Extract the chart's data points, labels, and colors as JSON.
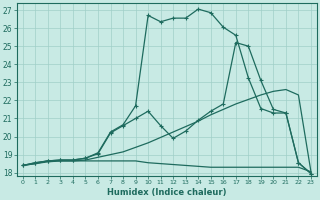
{
  "title": "",
  "xlabel": "Humidex (Indice chaleur)",
  "xlim": [
    -0.5,
    23.5
  ],
  "ylim": [
    17.8,
    27.4
  ],
  "xticks": [
    0,
    1,
    2,
    3,
    4,
    5,
    6,
    7,
    8,
    9,
    10,
    11,
    12,
    13,
    14,
    15,
    16,
    17,
    18,
    19,
    20,
    21,
    22,
    23
  ],
  "yticks": [
    18,
    19,
    20,
    21,
    22,
    23,
    24,
    25,
    26,
    27
  ],
  "bg_color": "#c8eae4",
  "grid_color": "#a0cfc8",
  "line_color": "#1e6b5e",
  "curves": [
    {
      "x": [
        0,
        1,
        2,
        3,
        4,
        5,
        6,
        7,
        8,
        9,
        10,
        11,
        12,
        13,
        14,
        15,
        16,
        17,
        18,
        19,
        20,
        21,
        22,
        23
      ],
      "y": [
        18.4,
        18.5,
        18.6,
        18.65,
        18.65,
        18.65,
        18.65,
        18.65,
        18.65,
        18.65,
        18.55,
        18.5,
        18.45,
        18.4,
        18.35,
        18.3,
        18.3,
        18.3,
        18.3,
        18.3,
        18.3,
        18.3,
        18.3,
        18.05
      ],
      "marker": null,
      "lw": 0.9
    },
    {
      "x": [
        0,
        1,
        2,
        3,
        4,
        5,
        6,
        7,
        8,
        9,
        10,
        11,
        12,
        13,
        14,
        15,
        16,
        17,
        18,
        19,
        20,
        21,
        22,
        23
      ],
      "y": [
        18.4,
        18.5,
        18.65,
        18.65,
        18.65,
        18.7,
        18.85,
        19.0,
        19.15,
        19.4,
        19.65,
        19.95,
        20.25,
        20.55,
        20.85,
        21.2,
        21.5,
        21.8,
        22.05,
        22.3,
        22.5,
        22.6,
        22.3,
        18.05
      ],
      "marker": null,
      "lw": 0.9
    },
    {
      "x": [
        0,
        1,
        2,
        3,
        4,
        5,
        6,
        7,
        8,
        9,
        10,
        11,
        12,
        13,
        14,
        15,
        16,
        17,
        18,
        19,
        20,
        21,
        22,
        23
      ],
      "y": [
        18.4,
        18.55,
        18.65,
        18.7,
        18.7,
        18.8,
        19.05,
        20.2,
        20.6,
        21.0,
        21.4,
        20.6,
        19.9,
        20.3,
        20.9,
        21.4,
        21.8,
        25.2,
        25.0,
        23.1,
        21.5,
        21.3,
        18.55,
        17.95
      ],
      "marker": "+",
      "lw": 0.9
    },
    {
      "x": [
        0,
        1,
        2,
        3,
        4,
        5,
        6,
        7,
        8,
        9,
        10,
        11,
        12,
        13,
        14,
        15,
        16,
        17,
        18,
        19,
        20,
        21,
        22,
        23
      ],
      "y": [
        18.4,
        18.55,
        18.65,
        18.7,
        18.7,
        18.8,
        19.1,
        20.25,
        20.65,
        21.7,
        26.7,
        26.35,
        26.55,
        26.55,
        27.05,
        26.85,
        26.05,
        25.6,
        23.25,
        21.55,
        21.3,
        21.3,
        18.55,
        17.95
      ],
      "marker": "+",
      "lw": 0.9
    }
  ]
}
